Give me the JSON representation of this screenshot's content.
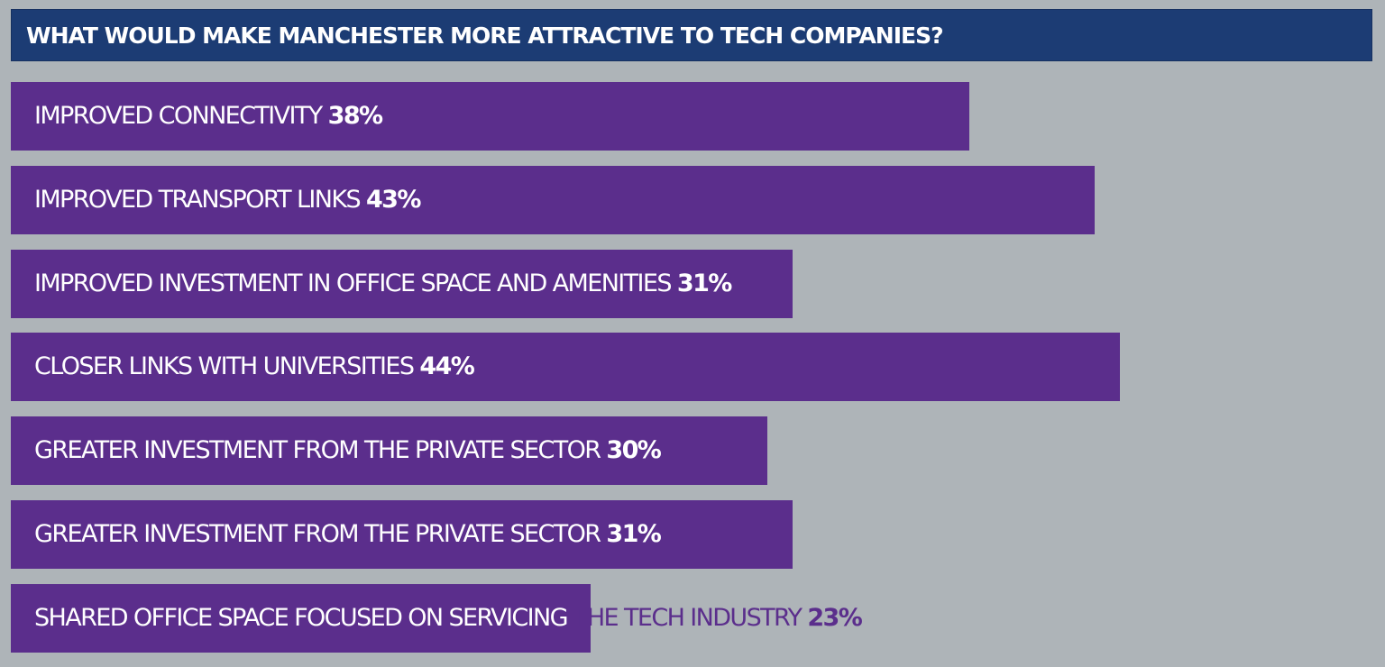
{
  "chart_data": {
    "type": "bar",
    "orientation": "horizontal",
    "title": "WHAT WOULD MAKE MANCHESTER MORE ATTRACTIVE TO TECH COMPANIES?",
    "categories": [
      "IMPROVED CONNECTIVITY",
      "IMPROVED TRANSPORT LINKS",
      "IMPROVED INVESTMENT IN OFFICE SPACE AND AMENITIES",
      "CLOSER LINKS WITH UNIVERSITIES",
      "GREATER INVESTMENT FROM THE PRIVATE SECTOR",
      "GREATER INVESTMENT FROM THE PRIVATE SECTOR",
      "SHARED OFFICE SPACE FOCUSED ON SERVICING THE TECH INDUSTRY"
    ],
    "values": [
      38,
      43,
      31,
      44,
      30,
      31,
      23
    ],
    "value_labels": [
      "38%",
      "43%",
      "31%",
      "44%",
      "30%",
      "31%",
      "23%"
    ],
    "unit": "%",
    "xlim": [
      0,
      54
    ],
    "grid": false,
    "legend": "none",
    "colors": {
      "background": "#aeb4b8",
      "title_bar": "#1c3c74",
      "bar": "#5b2e8c",
      "label_on_bar": "#ffffff",
      "label_off_bar": "#5b2e8c"
    }
  }
}
